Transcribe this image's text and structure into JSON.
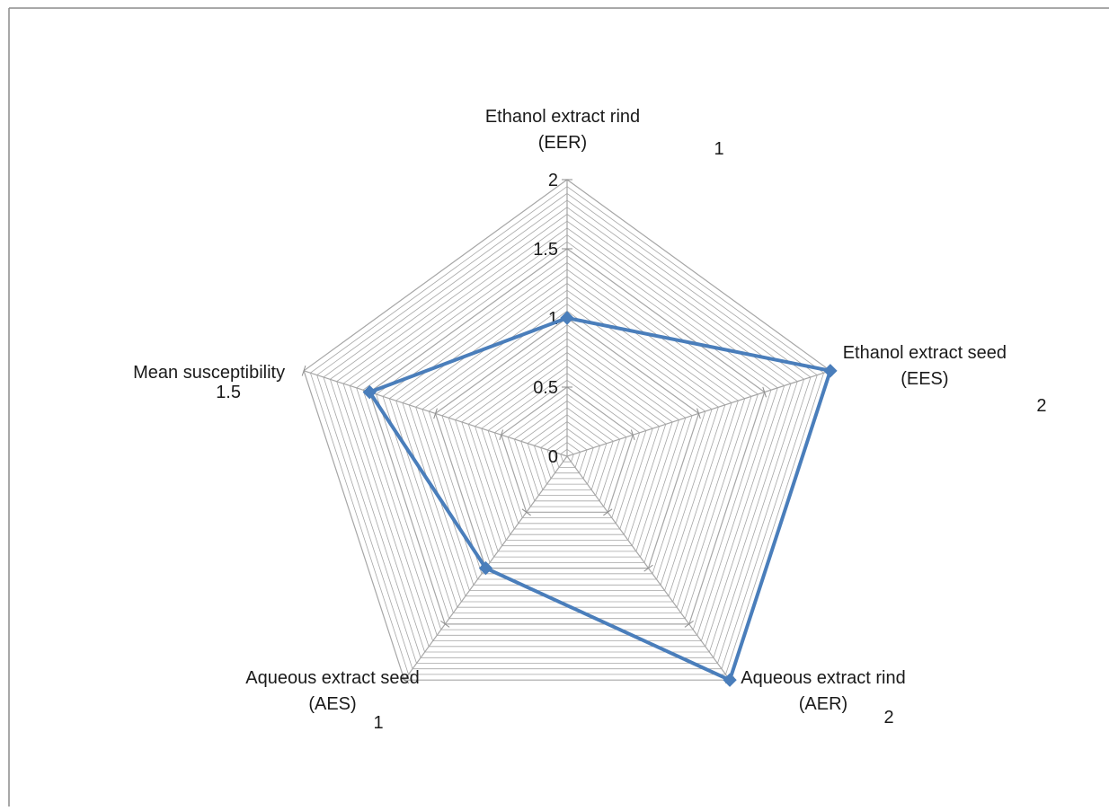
{
  "chart_data": {
    "type": "radar",
    "title": "",
    "categories": [
      [
        "Ethanol extract rind",
        "(EER)"
      ],
      [
        "Ethanol extract seed",
        "(EES)"
      ],
      [
        "Aqueous extract  rind",
        "(AER)"
      ],
      [
        "Aqueous extract seed",
        "(AES)"
      ],
      [
        "Mean susceptibility"
      ]
    ],
    "value_labels": [
      "1",
      "2",
      "2",
      "1",
      "1.5"
    ],
    "series": [
      {
        "values": [
          1,
          2,
          2,
          1,
          1.5
        ],
        "color": "#4a7ebb"
      }
    ],
    "range": [
      0,
      2
    ],
    "ticks": [
      "0",
      "0.5",
      "1",
      "1.5",
      "2"
    ],
    "grid": true,
    "gridline_color": "#a6a6a6"
  }
}
